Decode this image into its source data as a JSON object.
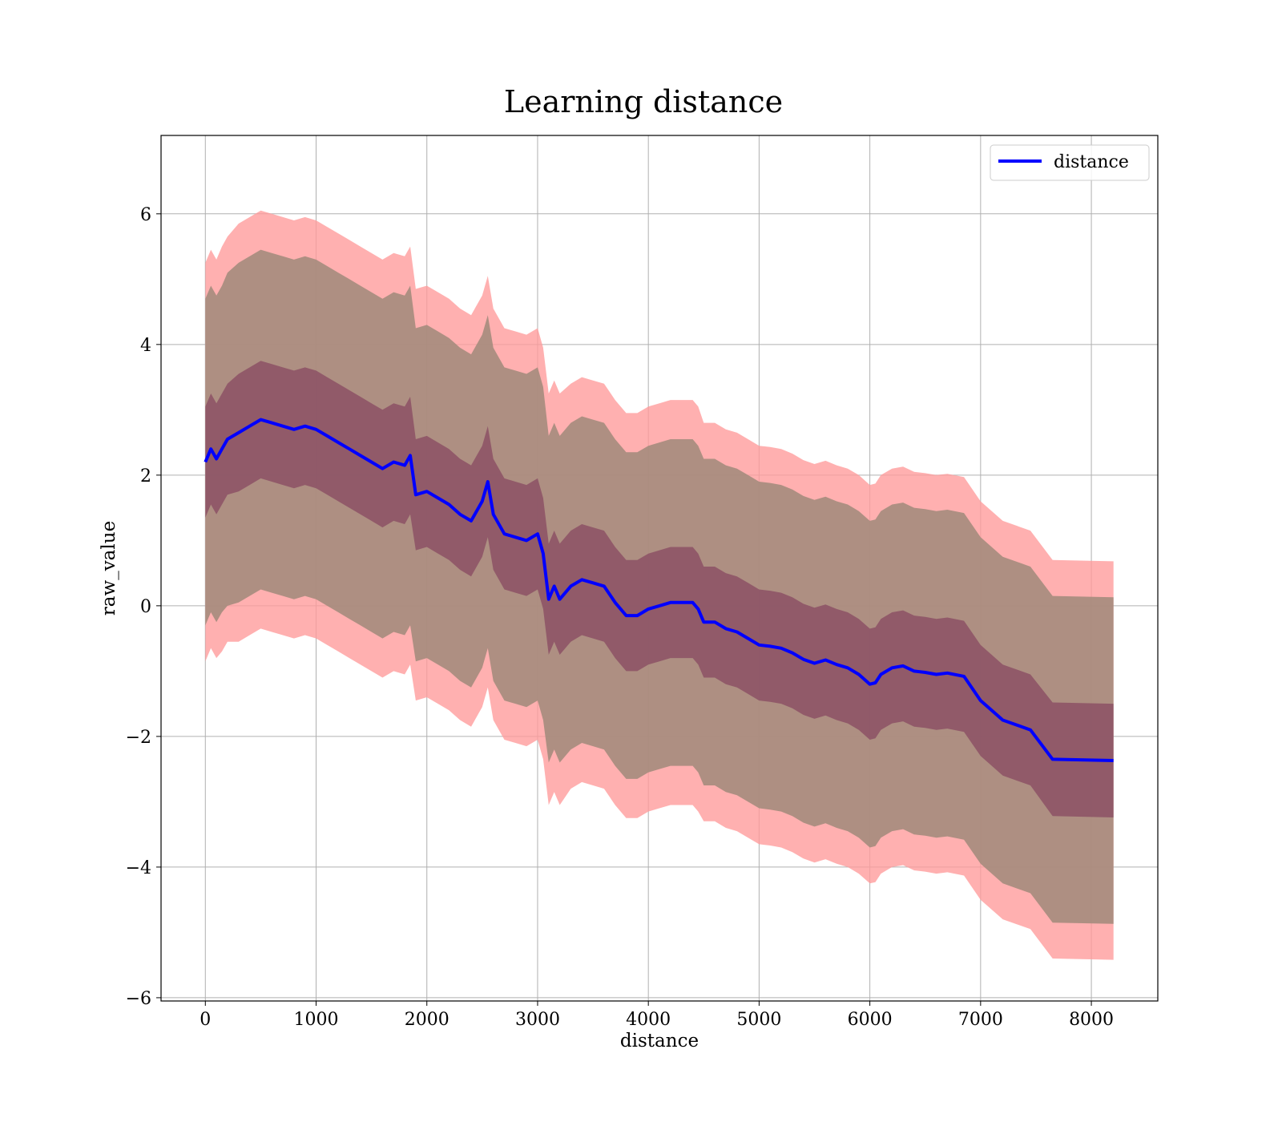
{
  "chart_data": {
    "type": "line",
    "title": "Learning distance",
    "xlabel": "distance",
    "ylabel": "raw_value",
    "xlim": [
      -400,
      8600
    ],
    "ylim": [
      -6.05,
      7.2
    ],
    "xticks": [
      0,
      1000,
      2000,
      3000,
      4000,
      5000,
      6000,
      7000,
      8000
    ],
    "xtick_labels": [
      "0",
      "1000",
      "2000",
      "3000",
      "4000",
      "5000",
      "6000",
      "7000",
      "8000"
    ],
    "yticks": [
      -6,
      -4,
      -2,
      0,
      2,
      4,
      6
    ],
    "ytick_labels": [
      "−6",
      "−4",
      "−2",
      "0",
      "2",
      "4",
      "6"
    ],
    "grid": true,
    "legend": {
      "entries": [
        "distance"
      ],
      "position": "top-right"
    },
    "colors": {
      "line": "#0000ff",
      "outer_band": "#ff9a9a",
      "mid_band": "#a0897a",
      "inner_band": "#7a2f56"
    },
    "series": [
      {
        "name": "distance",
        "x": [
          0,
          50,
          100,
          150,
          200,
          300,
          400,
          500,
          600,
          700,
          800,
          900,
          1000,
          1100,
          1200,
          1300,
          1400,
          1500,
          1600,
          1700,
          1800,
          1850,
          1900,
          2000,
          2100,
          2200,
          2300,
          2400,
          2500,
          2550,
          2600,
          2700,
          2800,
          2900,
          3000,
          3050,
          3100,
          3150,
          3200,
          3300,
          3400,
          3500,
          3600,
          3700,
          3800,
          3900,
          4000,
          4100,
          4200,
          4300,
          4400,
          4450,
          4500,
          4600,
          4700,
          4800,
          4900,
          5000,
          5100,
          5200,
          5300,
          5400,
          5500,
          5600,
          5700,
          5800,
          5900,
          6000,
          6050,
          6100,
          6200,
          6300,
          6400,
          6500,
          6600,
          6700,
          6850,
          7000,
          7200,
          7450,
          7650,
          8200
        ],
        "y": [
          2.2,
          2.4,
          2.25,
          2.4,
          2.55,
          2.65,
          2.75,
          2.85,
          2.8,
          2.75,
          2.7,
          2.75,
          2.7,
          2.6,
          2.5,
          2.4,
          2.3,
          2.2,
          2.1,
          2.2,
          2.15,
          2.3,
          1.7,
          1.75,
          1.65,
          1.55,
          1.4,
          1.3,
          1.6,
          1.9,
          1.4,
          1.1,
          1.05,
          1.0,
          1.1,
          0.8,
          0.1,
          0.3,
          0.1,
          0.3,
          0.4,
          0.35,
          0.3,
          0.05,
          -0.15,
          -0.15,
          -0.05,
          0.0,
          0.05,
          0.05,
          0.05,
          -0.05,
          -0.25,
          -0.25,
          -0.35,
          -0.4,
          -0.5,
          -0.6,
          -0.62,
          -0.65,
          -0.72,
          -0.82,
          -0.88,
          -0.83,
          -0.9,
          -0.95,
          -1.05,
          -1.2,
          -1.18,
          -1.05,
          -0.95,
          -0.92,
          -1.0,
          -1.02,
          -1.05,
          -1.03,
          -1.08,
          -1.45,
          -1.75,
          -1.9,
          -2.35,
          -2.37
        ],
        "band_inner": {
          "halfwidth": [
            0.85,
            0.85,
            0.85,
            0.85,
            0.85,
            0.9,
            0.9,
            0.9,
            0.9,
            0.9,
            0.9,
            0.9,
            0.9,
            0.9,
            0.9,
            0.9,
            0.9,
            0.9,
            0.9,
            0.9,
            0.9,
            0.9,
            0.85,
            0.85,
            0.85,
            0.85,
            0.85,
            0.85,
            0.85,
            0.85,
            0.85,
            0.85,
            0.85,
            0.85,
            0.85,
            0.85,
            0.85,
            0.85,
            0.85,
            0.85,
            0.85,
            0.85,
            0.85,
            0.85,
            0.85,
            0.85,
            0.85,
            0.85,
            0.85,
            0.85,
            0.85,
            0.85,
            0.85,
            0.85,
            0.85,
            0.85,
            0.85,
            0.85,
            0.85,
            0.85,
            0.85,
            0.85,
            0.85,
            0.85,
            0.85,
            0.85,
            0.85,
            0.85,
            0.85,
            0.85,
            0.85,
            0.85,
            0.85,
            0.85,
            0.85,
            0.85,
            0.85,
            0.85,
            0.85,
            0.85,
            0.87,
            0.87
          ]
        },
        "band_mid": {
          "halfwidth": [
            2.5,
            2.5,
            2.5,
            2.5,
            2.55,
            2.6,
            2.6,
            2.6,
            2.6,
            2.6,
            2.6,
            2.6,
            2.6,
            2.6,
            2.6,
            2.6,
            2.6,
            2.6,
            2.6,
            2.6,
            2.6,
            2.6,
            2.55,
            2.55,
            2.55,
            2.55,
            2.55,
            2.55,
            2.55,
            2.55,
            2.55,
            2.55,
            2.55,
            2.55,
            2.55,
            2.55,
            2.5,
            2.5,
            2.5,
            2.5,
            2.5,
            2.5,
            2.5,
            2.5,
            2.5,
            2.5,
            2.5,
            2.5,
            2.5,
            2.5,
            2.5,
            2.5,
            2.5,
            2.5,
            2.5,
            2.5,
            2.5,
            2.5,
            2.5,
            2.5,
            2.5,
            2.5,
            2.5,
            2.5,
            2.5,
            2.5,
            2.5,
            2.5,
            2.5,
            2.5,
            2.5,
            2.5,
            2.5,
            2.5,
            2.5,
            2.5,
            2.5,
            2.5,
            2.5,
            2.5,
            2.5,
            2.5
          ]
        },
        "band_outer": {
          "halfwidth": [
            3.05,
            3.05,
            3.05,
            3.1,
            3.1,
            3.2,
            3.2,
            3.2,
            3.2,
            3.2,
            3.2,
            3.2,
            3.2,
            3.2,
            3.2,
            3.2,
            3.2,
            3.2,
            3.2,
            3.2,
            3.2,
            3.2,
            3.15,
            3.15,
            3.15,
            3.15,
            3.15,
            3.15,
            3.15,
            3.15,
            3.15,
            3.15,
            3.15,
            3.15,
            3.15,
            3.15,
            3.15,
            3.15,
            3.15,
            3.1,
            3.1,
            3.1,
            3.1,
            3.1,
            3.1,
            3.1,
            3.1,
            3.1,
            3.1,
            3.1,
            3.1,
            3.1,
            3.05,
            3.05,
            3.05,
            3.05,
            3.05,
            3.05,
            3.05,
            3.05,
            3.05,
            3.05,
            3.05,
            3.05,
            3.05,
            3.05,
            3.05,
            3.05,
            3.05,
            3.05,
            3.05,
            3.05,
            3.05,
            3.05,
            3.05,
            3.05,
            3.05,
            3.05,
            3.05,
            3.05,
            3.05,
            3.05
          ]
        }
      }
    ]
  }
}
